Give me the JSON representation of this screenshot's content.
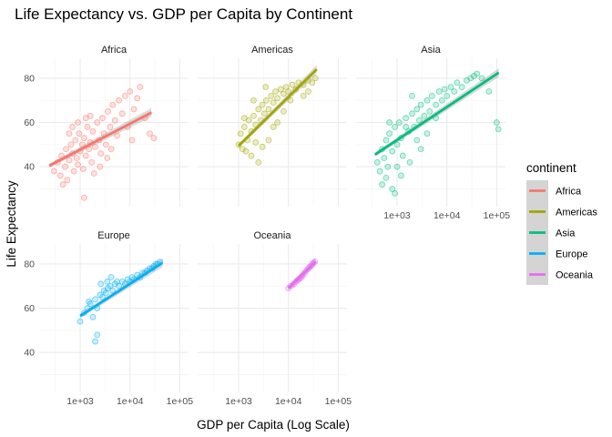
{
  "chart_data": {
    "type": "scatter",
    "title": "Life Expectancy vs. GDP per Capita by Continent",
    "xlabel": "GDP per Capita (Log Scale)",
    "ylabel": "Life Expectancy",
    "x_scale": "log10",
    "xlim": [
      150,
      150000
    ],
    "ylim": [
      22,
      89
    ],
    "x_ticks": [
      1000,
      10000,
      100000
    ],
    "x_tick_labels": [
      "1e+03",
      "1e+04",
      "1e+05"
    ],
    "y_ticks": [
      40,
      60,
      80
    ],
    "y_tick_labels": [
      "40",
      "60",
      "80"
    ],
    "legend": {
      "title": "continent",
      "entries": [
        "Africa",
        "Americas",
        "Asia",
        "Europe",
        "Oceania"
      ],
      "position": "right"
    },
    "series": [
      {
        "name": "Africa",
        "color": "#F8766D",
        "trend": {
          "x": [
            240,
            27000
          ],
          "y": [
            40.5,
            64.5
          ]
        },
        "points": [
          [
            300,
            38
          ],
          [
            350,
            42
          ],
          [
            400,
            36
          ],
          [
            420,
            45
          ],
          [
            500,
            40
          ],
          [
            520,
            48
          ],
          [
            600,
            43
          ],
          [
            650,
            50
          ],
          [
            700,
            46
          ],
          [
            750,
            38
          ],
          [
            800,
            52
          ],
          [
            850,
            44
          ],
          [
            900,
            41
          ],
          [
            950,
            55
          ],
          [
            1000,
            47
          ],
          [
            1100,
            50
          ],
          [
            1150,
            39
          ],
          [
            1200,
            53
          ],
          [
            1300,
            45
          ],
          [
            1400,
            58
          ],
          [
            1500,
            48
          ],
          [
            1600,
            51
          ],
          [
            1700,
            42
          ],
          [
            1800,
            56
          ],
          [
            2000,
            49
          ],
          [
            2200,
            60
          ],
          [
            2400,
            52
          ],
          [
            2600,
            46
          ],
          [
            2800,
            62
          ],
          [
            3000,
            55
          ],
          [
            3300,
            50
          ],
          [
            3600,
            65
          ],
          [
            4000,
            58
          ],
          [
            4500,
            68
          ],
          [
            5000,
            61
          ],
          [
            5500,
            54
          ],
          [
            6000,
            70
          ],
          [
            7000,
            64
          ],
          [
            8000,
            72
          ],
          [
            9000,
            58
          ],
          [
            10000,
            74
          ],
          [
            12000,
            66
          ],
          [
            14000,
            71
          ],
          [
            16000,
            76
          ],
          [
            20000,
            62
          ],
          [
            25000,
            55
          ],
          [
            30000,
            53
          ],
          [
            450,
            32
          ],
          [
            550,
            34
          ],
          [
            1200,
            26
          ],
          [
            700,
            58
          ],
          [
            1300,
            62
          ],
          [
            2500,
            40
          ],
          [
            3500,
            44
          ],
          [
            900,
            60
          ],
          [
            1600,
            63
          ],
          [
            600,
            55
          ],
          [
            1900,
            37
          ],
          [
            4200,
            48
          ],
          [
            11000,
            52
          ]
        ]
      },
      {
        "name": "Americas",
        "color": "#A3A500",
        "trend": {
          "x": [
            1000,
            37000
          ],
          "y": [
            49.5,
            84
          ]
        },
        "points": [
          [
            1000,
            50
          ],
          [
            1100,
            55
          ],
          [
            1200,
            48
          ],
          [
            1300,
            58
          ],
          [
            1500,
            52
          ],
          [
            1600,
            61
          ],
          [
            1800,
            56
          ],
          [
            2000,
            63
          ],
          [
            2200,
            59
          ],
          [
            2500,
            66
          ],
          [
            2800,
            61
          ],
          [
            3000,
            68
          ],
          [
            3300,
            64
          ],
          [
            3600,
            70
          ],
          [
            4000,
            66
          ],
          [
            4500,
            72
          ],
          [
            5000,
            69
          ],
          [
            5500,
            74
          ],
          [
            6000,
            71
          ],
          [
            7000,
            75
          ],
          [
            8000,
            73
          ],
          [
            9000,
            76
          ],
          [
            10000,
            74
          ],
          [
            12000,
            77
          ],
          [
            14000,
            75
          ],
          [
            16000,
            78
          ],
          [
            20000,
            77
          ],
          [
            25000,
            79
          ],
          [
            30000,
            78
          ],
          [
            35000,
            80
          ],
          [
            1800,
            45
          ],
          [
            2500,
            42
          ],
          [
            3000,
            49
          ],
          [
            4000,
            52
          ],
          [
            5000,
            58
          ],
          [
            6000,
            60
          ],
          [
            1400,
            47
          ],
          [
            2200,
            51
          ],
          [
            8000,
            65
          ],
          [
            11000,
            70
          ],
          [
            3500,
            76
          ],
          [
            2000,
            70
          ],
          [
            1300,
            62
          ],
          [
            20000,
            72
          ],
          [
            25000,
            74
          ]
        ]
      },
      {
        "name": "Asia",
        "color": "#00BF7D",
        "trend": {
          "x": [
            360,
            110000
          ],
          "y": [
            45.5,
            82.5
          ]
        },
        "points": [
          [
            400,
            42
          ],
          [
            450,
            38
          ],
          [
            500,
            48
          ],
          [
            550,
            44
          ],
          [
            600,
            52
          ],
          [
            650,
            40
          ],
          [
            700,
            55
          ],
          [
            800,
            47
          ],
          [
            900,
            58
          ],
          [
            1000,
            50
          ],
          [
            1100,
            60
          ],
          [
            1200,
            53
          ],
          [
            1300,
            45
          ],
          [
            1500,
            62
          ],
          [
            1700,
            56
          ],
          [
            2000,
            64
          ],
          [
            2200,
            58
          ],
          [
            2500,
            66
          ],
          [
            2800,
            61
          ],
          [
            3000,
            68
          ],
          [
            3500,
            63
          ],
          [
            4000,
            70
          ],
          [
            4500,
            65
          ],
          [
            5000,
            72
          ],
          [
            6000,
            68
          ],
          [
            7000,
            74
          ],
          [
            8000,
            70
          ],
          [
            9000,
            75
          ],
          [
            10000,
            72
          ],
          [
            12000,
            76
          ],
          [
            14000,
            74
          ],
          [
            16000,
            78
          ],
          [
            20000,
            76
          ],
          [
            25000,
            79
          ],
          [
            30000,
            80
          ],
          [
            35000,
            81
          ],
          [
            40000,
            82
          ],
          [
            50000,
            80
          ],
          [
            70000,
            74
          ],
          [
            100000,
            60
          ],
          [
            108000,
            57
          ],
          [
            500,
            32
          ],
          [
            600,
            35
          ],
          [
            800,
            30
          ],
          [
            1200,
            36
          ],
          [
            700,
            60
          ],
          [
            1500,
            58
          ],
          [
            2500,
            52
          ],
          [
            1000,
            40
          ],
          [
            3000,
            48
          ],
          [
            2000,
            72
          ],
          [
            4000,
            55
          ],
          [
            6000,
            62
          ],
          [
            900,
            28
          ],
          [
            1800,
            42
          ]
        ]
      },
      {
        "name": "Europe",
        "color": "#00B0F6",
        "trend": {
          "x": [
            1000,
            45000
          ],
          "y": [
            56.5,
            80.5
          ]
        },
        "points": [
          [
            1000,
            54
          ],
          [
            1200,
            58
          ],
          [
            1400,
            60
          ],
          [
            1600,
            62
          ],
          [
            1800,
            56
          ],
          [
            2000,
            64
          ],
          [
            2200,
            60
          ],
          [
            2500,
            66
          ],
          [
            2800,
            65
          ],
          [
            3000,
            68
          ],
          [
            3300,
            67
          ],
          [
            3600,
            69
          ],
          [
            4000,
            70
          ],
          [
            4500,
            68
          ],
          [
            5000,
            71
          ],
          [
            5500,
            72
          ],
          [
            6000,
            70
          ],
          [
            7000,
            72
          ],
          [
            8000,
            71
          ],
          [
            9000,
            73
          ],
          [
            10000,
            72
          ],
          [
            11000,
            74
          ],
          [
            12000,
            73
          ],
          [
            14000,
            75
          ],
          [
            16000,
            74
          ],
          [
            18000,
            76
          ],
          [
            20000,
            76
          ],
          [
            22000,
            77
          ],
          [
            25000,
            78
          ],
          [
            28000,
            78
          ],
          [
            30000,
            79
          ],
          [
            33000,
            80
          ],
          [
            36000,
            80
          ],
          [
            40000,
            81
          ],
          [
            2000,
            45
          ],
          [
            2200,
            48
          ],
          [
            1500,
            63
          ],
          [
            3500,
            72
          ],
          [
            2600,
            71
          ],
          [
            4200,
            74
          ]
        ]
      },
      {
        "name": "Oceania",
        "color": "#E76BF3",
        "trend": {
          "x": [
            10000,
            35000
          ],
          "y": [
            69,
            81
          ]
        },
        "points": [
          [
            10000,
            69
          ],
          [
            11000,
            70
          ],
          [
            12000,
            70.5
          ],
          [
            13000,
            71
          ],
          [
            14000,
            72
          ],
          [
            15000,
            72.5
          ],
          [
            16000,
            73
          ],
          [
            17000,
            73.5
          ],
          [
            18000,
            74
          ],
          [
            19000,
            74.5
          ],
          [
            20000,
            75.5
          ],
          [
            22000,
            76.5
          ],
          [
            24000,
            77.5
          ],
          [
            26000,
            78.5
          ],
          [
            28000,
            79
          ],
          [
            30000,
            80
          ],
          [
            32000,
            80.5
          ],
          [
            34000,
            81
          ]
        ]
      }
    ]
  }
}
